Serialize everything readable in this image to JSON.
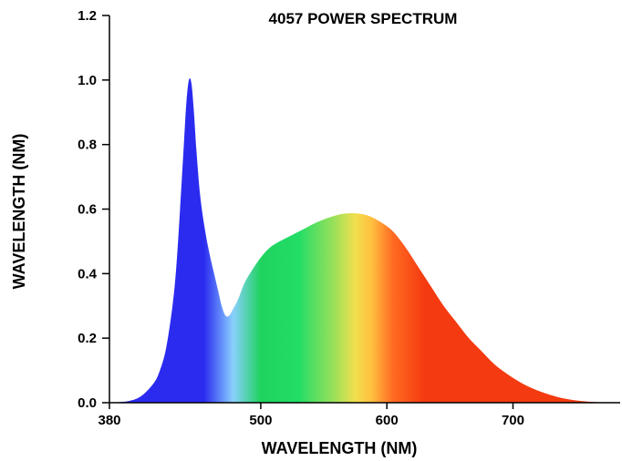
{
  "chart_data": {
    "type": "area",
    "title": "4057 POWER SPECTRUM",
    "xlabel": "WAVELENGTH (NM)",
    "ylabel": "WAVELENGTH (NM)",
    "xlim": [
      380,
      785
    ],
    "ylim": [
      0,
      1.2
    ],
    "x_ticks": [
      {
        "value": 380,
        "label": "380"
      },
      {
        "value": 500,
        "label": "500"
      },
      {
        "value": 600,
        "label": "600"
      },
      {
        "value": 700,
        "label": "700"
      }
    ],
    "y_ticks": [
      {
        "value": 0,
        "label": "0.0"
      },
      {
        "value": 0.2,
        "label": "0.2"
      },
      {
        "value": 0.4,
        "label": "0.4"
      },
      {
        "value": 0.6,
        "label": "0.6"
      },
      {
        "value": 0.8,
        "label": "0.8"
      },
      {
        "value": 1.0,
        "label": "1.0"
      },
      {
        "value": 1.2,
        "label": "1.2"
      }
    ],
    "grid": false,
    "legend": "none",
    "series": [
      {
        "fill": "spectral-gradient",
        "x": [
          380,
          395,
          405,
          415,
          420,
          425,
          430,
          433,
          436,
          439,
          441,
          443,
          445,
          447,
          449,
          452,
          456,
          460,
          463,
          466,
          469,
          472,
          475,
          478,
          482,
          487,
          493,
          500,
          507,
          515,
          525,
          535,
          545,
          555,
          565,
          575,
          585,
          595,
          605,
          615,
          625,
          635,
          645,
          655,
          665,
          675,
          685,
          695,
          705,
          715,
          725,
          735,
          745,
          755,
          765,
          775,
          785
        ],
        "y": [
          0.0,
          0.005,
          0.02,
          0.06,
          0.1,
          0.17,
          0.3,
          0.42,
          0.6,
          0.8,
          0.93,
          1.0,
          0.99,
          0.9,
          0.78,
          0.64,
          0.53,
          0.45,
          0.4,
          0.35,
          0.3,
          0.27,
          0.27,
          0.29,
          0.32,
          0.37,
          0.41,
          0.45,
          0.48,
          0.5,
          0.52,
          0.54,
          0.56,
          0.575,
          0.585,
          0.587,
          0.58,
          0.56,
          0.53,
          0.48,
          0.42,
          0.36,
          0.3,
          0.25,
          0.2,
          0.16,
          0.12,
          0.09,
          0.065,
          0.045,
          0.03,
          0.018,
          0.01,
          0.005,
          0.002,
          0.0005,
          0.0
        ]
      }
    ],
    "gradient_stops": [
      {
        "x": 380,
        "color": "#2b2bf0"
      },
      {
        "x": 455,
        "color": "#2b2bf0"
      },
      {
        "x": 478,
        "color": "#8ad0ff"
      },
      {
        "x": 500,
        "color": "#1fd35e"
      },
      {
        "x": 530,
        "color": "#22dd66"
      },
      {
        "x": 558,
        "color": "#9be05a"
      },
      {
        "x": 575,
        "color": "#f2df4e"
      },
      {
        "x": 588,
        "color": "#ffbf40"
      },
      {
        "x": 605,
        "color": "#ff6a22"
      },
      {
        "x": 630,
        "color": "#f43a10"
      },
      {
        "x": 785,
        "color": "#f43a10"
      }
    ]
  }
}
